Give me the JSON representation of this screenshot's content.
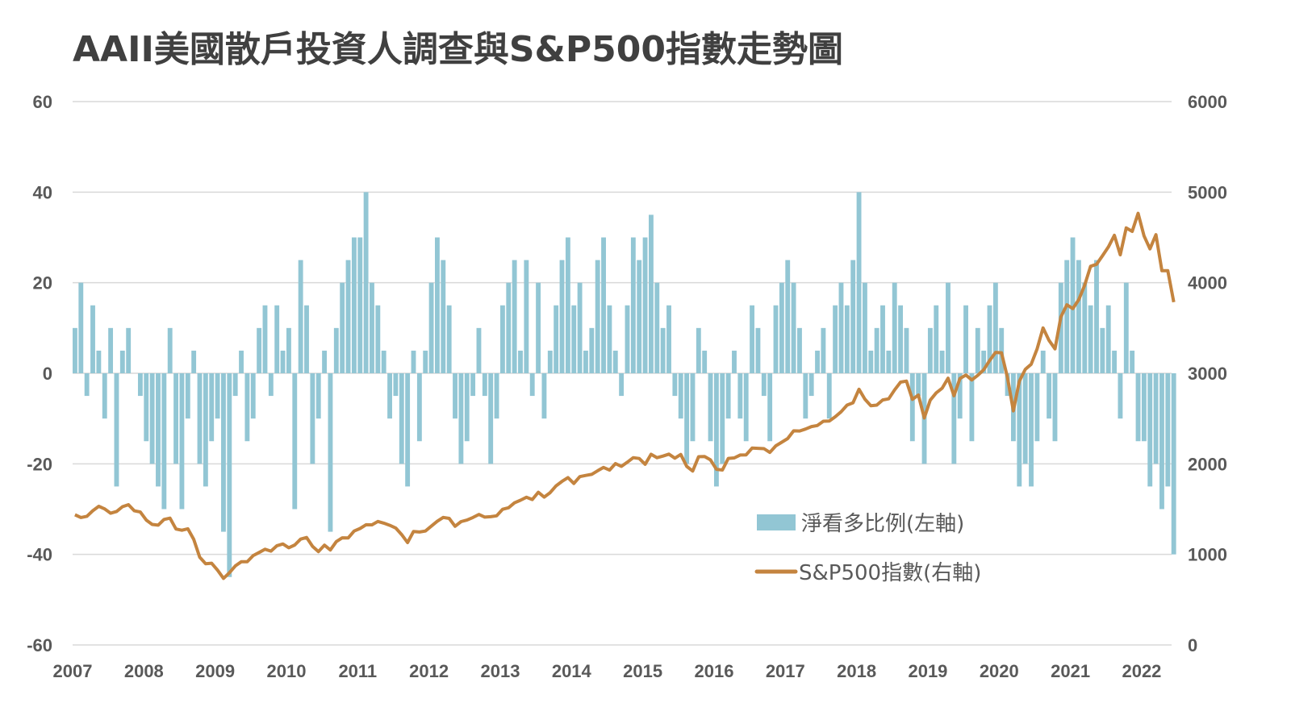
{
  "chart_data": {
    "type": "bar+line",
    "title": "AAII美國散戶投資人調查與S&P500指數走勢圖",
    "x_ticks": [
      "2007",
      "2008",
      "2009",
      "2010",
      "2011",
      "2012",
      "2013",
      "2014",
      "2015",
      "2016",
      "2017",
      "2018",
      "2019",
      "2020",
      "2021",
      "2022"
    ],
    "left_axis": {
      "ylim": [
        -60,
        60
      ],
      "ticks": [
        "60",
        "40",
        "20",
        "0",
        "-20",
        "-40",
        "-60"
      ]
    },
    "right_axis": {
      "ylim": [
        0,
        6000
      ],
      "ticks": [
        "6000",
        "5000",
        "4000",
        "3000",
        "2000",
        "1000",
        "0"
      ]
    },
    "grid": true,
    "legend_placement": "bottom-center",
    "x_start": "2007-01",
    "x_step": "month",
    "colors": {
      "bar": "#92c6d4",
      "line": "#c4843f"
    },
    "series": [
      {
        "name": "淨看多比例(左軸)",
        "type": "bar",
        "axis": "left",
        "values": [
          10,
          20,
          -5,
          15,
          5,
          -10,
          10,
          -25,
          5,
          10,
          0,
          -5,
          -15,
          -20,
          -25,
          -30,
          10,
          -20,
          -30,
          -10,
          5,
          -20,
          -25,
          -15,
          -10,
          -35,
          -45,
          -5,
          5,
          -15,
          -10,
          10,
          15,
          -5,
          15,
          5,
          10,
          -30,
          25,
          15,
          -20,
          -10,
          5,
          -35,
          10,
          20,
          25,
          30,
          30,
          40,
          20,
          15,
          5,
          -10,
          -5,
          -20,
          -25,
          5,
          -15,
          5,
          20,
          30,
          25,
          15,
          -10,
          -20,
          -15,
          -5,
          10,
          -5,
          -20,
          -10,
          15,
          20,
          25,
          5,
          25,
          -5,
          20,
          -10,
          5,
          15,
          25,
          30,
          15,
          20,
          5,
          10,
          25,
          30,
          15,
          5,
          -5,
          15,
          30,
          25,
          30,
          35,
          20,
          10,
          15,
          -5,
          -10,
          -20,
          -15,
          10,
          5,
          -15,
          -25,
          -20,
          -10,
          5,
          -10,
          -15,
          15,
          10,
          -5,
          -15,
          15,
          20,
          25,
          20,
          10,
          -10,
          -5,
          5,
          10,
          -10,
          15,
          20,
          15,
          25,
          40,
          20,
          5,
          10,
          15,
          5,
          20,
          15,
          10,
          -15,
          -5,
          -20,
          10,
          15,
          5,
          20,
          -20,
          -10,
          15,
          -15,
          10,
          5,
          15,
          20,
          10,
          -5,
          -15,
          -25,
          -20,
          -25,
          -15,
          5,
          -10,
          -15,
          20,
          25,
          30,
          25,
          20,
          15,
          25,
          10,
          15,
          5,
          -10,
          20,
          5,
          -15,
          -15,
          -25,
          -20,
          -30,
          -25,
          -40
        ]
      },
      {
        "name": "S&P500指數(右軸)",
        "type": "line",
        "axis": "right",
        "values": [
          1438,
          1407,
          1421,
          1482,
          1531,
          1503,
          1455,
          1474,
          1527,
          1549,
          1481,
          1468,
          1379,
          1331,
          1323,
          1386,
          1400,
          1280,
          1267,
          1283,
          1166,
          969,
          896,
          903,
          826,
          735,
          798,
          873,
          919,
          919,
          987,
          1021,
          1057,
          1036,
          1096,
          1115,
          1074,
          1104,
          1169,
          1187,
          1089,
          1031,
          1102,
          1049,
          1141,
          1183,
          1181,
          1258,
          1286,
          1327,
          1326,
          1364,
          1345,
          1321,
          1292,
          1219,
          1131,
          1253,
          1247,
          1258,
          1312,
          1366,
          1408,
          1398,
          1310,
          1362,
          1379,
          1407,
          1441,
          1412,
          1416,
          1426,
          1498,
          1515,
          1569,
          1598,
          1631,
          1606,
          1686,
          1633,
          1682,
          1757,
          1806,
          1848,
          1783,
          1859,
          1872,
          1884,
          1924,
          1960,
          1931,
          2003,
          1972,
          2018,
          2068,
          2059,
          1995,
          2105,
          2068,
          2086,
          2107,
          2063,
          2104,
          1972,
          1920,
          2079,
          2080,
          2044,
          1940,
          1932,
          2060,
          2065,
          2097,
          2099,
          2174,
          2171,
          2168,
          2126,
          2199,
          2239,
          2279,
          2364,
          2363,
          2384,
          2412,
          2423,
          2470,
          2472,
          2519,
          2575,
          2648,
          2674,
          2824,
          2714,
          2641,
          2648,
          2705,
          2718,
          2816,
          2902,
          2914,
          2712,
          2760,
          2507,
          2704,
          2784,
          2834,
          2946,
          2752,
          2942,
          2980,
          2926,
          2977,
          3038,
          3141,
          3231,
          3226,
          2954,
          2585,
          2912,
          3044,
          3100,
          3271,
          3500,
          3363,
          3270,
          3622,
          3756,
          3714,
          3811,
          3973,
          4181,
          4204,
          4298,
          4395,
          4523,
          4308,
          4605,
          4567,
          4766,
          4516,
          4374,
          4530,
          4132,
          4132,
          3785
        ]
      }
    ]
  }
}
